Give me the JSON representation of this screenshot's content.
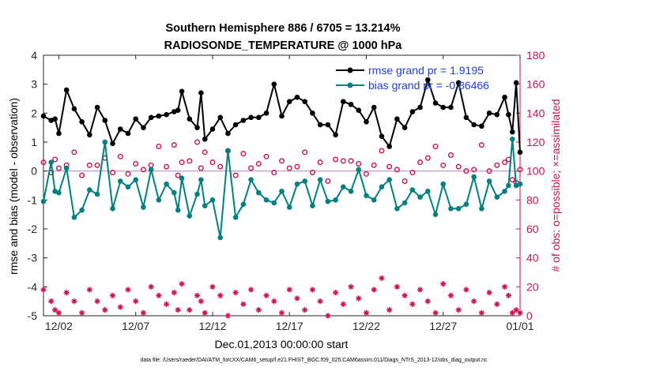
{
  "colors": {
    "rmse": "#000000",
    "bias": "#008080",
    "possible": "#cc1155",
    "assimilated": "#cc1155",
    "legend_text": "#1f3fd8",
    "zero_line": "#c8a8c8",
    "right_axis": "#cc1155"
  },
  "chart_data": {
    "type": "line",
    "title": "Southern Hemisphere 886 / 6705 = 13.214%",
    "subtitle": "RADIOSONDE_TEMPERATURE @ 1000 hPa",
    "xlabel": "Dec.01,2013 00:00:00 start",
    "ylabel_left": "rmse and bias (model - observation)",
    "ylabel_right": "# of obs: o=possible; ×=assimilated",
    "xlim": [
      0.5,
      31.5
    ],
    "ylim_left": [
      -5,
      4
    ],
    "ylim_right": [
      0,
      180
    ],
    "x_ticks": [
      1.5,
      6.5,
      11.5,
      16.5,
      21.5,
      26.5,
      31.5
    ],
    "x_tick_labels": [
      "12/02",
      "12/07",
      "12/12",
      "12/17",
      "12/22",
      "12/27",
      "01/01"
    ],
    "y_ticks_left": [
      -5,
      -4,
      -3,
      -2,
      -1,
      0,
      1,
      2,
      3,
      4
    ],
    "y_ticks_right": [
      0,
      20,
      40,
      60,
      80,
      100,
      120,
      140,
      160,
      180
    ],
    "legend": {
      "position": "top-right",
      "entries": [
        "rmse grand pr = 1.9195",
        "bias grand pr = -0.86466"
      ]
    },
    "x": [
      0.5,
      1.0,
      1.25,
      1.5,
      2.0,
      2.5,
      3.0,
      3.5,
      4.0,
      4.5,
      5.0,
      5.5,
      6.0,
      6.5,
      7.0,
      7.5,
      8.0,
      8.5,
      9.0,
      9.25,
      9.5,
      10.0,
      10.5,
      10.75,
      11.0,
      11.5,
      12.0,
      12.5,
      13.0,
      13.5,
      14.0,
      14.5,
      15.0,
      15.5,
      16.0,
      16.5,
      17.0,
      17.5,
      18.0,
      18.5,
      19.0,
      19.5,
      20.0,
      20.5,
      21.0,
      21.5,
      22.0,
      22.5,
      23.0,
      23.5,
      24.0,
      24.5,
      25.0,
      25.5,
      26.0,
      26.5,
      27.0,
      27.5,
      28.0,
      28.5,
      29.0,
      29.5,
      30.0,
      30.5,
      30.75,
      31.0,
      31.25,
      31.5
    ],
    "series": [
      {
        "name": "rmse",
        "marker": "filled circle",
        "values": [
          1.9,
          1.75,
          1.8,
          1.3,
          2.8,
          2.15,
          1.7,
          1.25,
          2.2,
          1.75,
          0.95,
          1.45,
          1.3,
          1.8,
          1.5,
          1.85,
          1.9,
          1.95,
          2.05,
          2.1,
          2.75,
          1.8,
          1.5,
          2.7,
          1.1,
          1.45,
          1.85,
          1.3,
          1.6,
          1.75,
          1.85,
          1.85,
          2.0,
          3.0,
          1.9,
          2.4,
          2.55,
          2.4,
          2.0,
          1.6,
          1.6,
          1.25,
          2.4,
          2.3,
          2.1,
          1.7,
          2.2,
          1.2,
          0.85,
          1.8,
          1.5,
          2.05,
          2.2,
          3.15,
          2.35,
          2.2,
          2.2,
          3.05,
          1.85,
          1.6,
          1.55,
          2.0,
          1.95,
          2.55,
          1.95,
          1.35,
          3.05,
          0.65
        ]
      },
      {
        "name": "bias",
        "marker": "filled circle",
        "values": [
          -1.05,
          0.3,
          -0.7,
          -0.75,
          0.1,
          -1.6,
          -1.35,
          -0.65,
          -0.8,
          1.0,
          -1.3,
          -0.35,
          -0.55,
          -0.3,
          -1.25,
          0.05,
          -1.0,
          -0.45,
          -0.75,
          -1.35,
          -0.25,
          -1.55,
          -0.8,
          -0.3,
          -1.2,
          -1.0,
          -2.3,
          0.7,
          -1.6,
          -1.15,
          -0.3,
          -0.75,
          -1.0,
          -1.1,
          -0.7,
          -1.25,
          -0.45,
          -0.35,
          -1.2,
          -0.3,
          -1.05,
          -1.0,
          -0.55,
          -0.7,
          0.05,
          -0.85,
          -1.0,
          -0.55,
          -0.3,
          -1.3,
          -1.1,
          -0.65,
          -0.9,
          -0.7,
          -1.5,
          -0.45,
          -1.3,
          -1.3,
          -1.15,
          -0.2,
          -1.3,
          -0.35,
          -0.9,
          -0.7,
          -0.5,
          1.1,
          -0.5,
          -0.45
        ]
      },
      {
        "name": "possible",
        "marker": "open circle",
        "axis": "right",
        "values": [
          106,
          99,
          108,
          102,
          104,
          113,
          97,
          104,
          104,
          109,
          99,
          110,
          98,
          105,
          101,
          104,
          117,
          103,
          118,
          97,
          106,
          107,
          120,
          102,
          113,
          106,
          103,
          114,
          97,
          112,
          102,
          105,
          110,
          99,
          107,
          102,
          103,
          113,
          99,
          106,
          93,
          108,
          107,
          107,
          105,
          98,
          104,
          114,
          103,
          101,
          93,
          99,
          106,
          109,
          117,
          104,
          111,
          103,
          100,
          101,
          118,
          100,
          104,
          106,
          108,
          94,
          92,
          101
        ]
      },
      {
        "name": "assimilated",
        "marker": "asterisk",
        "axis": "right",
        "values": [
          18,
          10,
          4,
          2,
          16,
          10,
          2,
          18,
          10,
          4,
          14,
          6,
          18,
          10,
          2,
          20,
          14,
          8,
          16,
          4,
          22,
          4,
          14,
          10,
          2,
          20,
          14,
          0,
          16,
          8,
          18,
          4,
          14,
          10,
          2,
          18,
          12,
          4,
          18,
          10,
          0,
          16,
          8,
          20,
          12,
          2,
          18,
          26,
          4,
          20,
          14,
          8,
          18,
          10,
          2,
          22,
          14,
          4,
          18,
          10,
          2,
          16,
          8,
          20,
          14,
          2,
          4,
          2
        ]
      }
    ]
  },
  "footer": {
    "data_file": "data file: /Users/raeder/DAI/ATM_forcXX/CAM6_setup/f.e21.FHIST_BGC.f09_025.CAM6assim.011/Diags_NTrS_2013-12/obs_diag_output.nc"
  }
}
